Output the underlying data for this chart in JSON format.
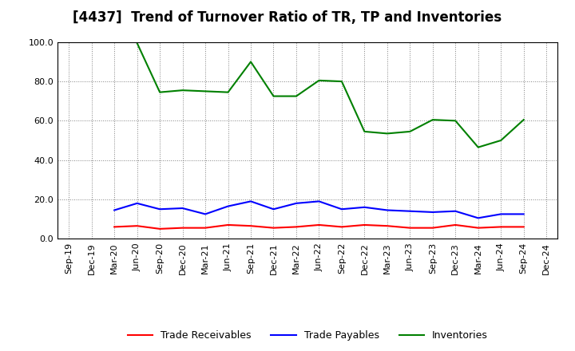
{
  "title": "[4437]  Trend of Turnover Ratio of TR, TP and Inventories",
  "xlabels": [
    "Sep-19",
    "Dec-19",
    "Mar-20",
    "Jun-20",
    "Sep-20",
    "Dec-20",
    "Mar-21",
    "Jun-21",
    "Sep-21",
    "Dec-21",
    "Mar-22",
    "Jun-22",
    "Sep-22",
    "Dec-22",
    "Mar-23",
    "Jun-23",
    "Sep-23",
    "Dec-23",
    "Mar-24",
    "Jun-24",
    "Sep-24",
    "Dec-24"
  ],
  "trade_receivables": [
    null,
    null,
    6.0,
    6.5,
    5.0,
    5.5,
    5.5,
    7.0,
    6.5,
    5.5,
    6.0,
    7.0,
    6.0,
    7.0,
    6.5,
    5.5,
    5.5,
    7.0,
    5.5,
    6.0,
    6.0,
    null
  ],
  "trade_payables": [
    null,
    null,
    14.5,
    18.0,
    15.0,
    15.5,
    12.5,
    16.5,
    19.0,
    15.0,
    18.0,
    19.0,
    15.0,
    16.0,
    14.5,
    14.0,
    13.5,
    14.0,
    10.5,
    12.5,
    12.5,
    null
  ],
  "inventories": [
    null,
    null,
    null,
    99.5,
    74.5,
    75.5,
    75.0,
    74.5,
    90.0,
    72.5,
    72.5,
    80.5,
    80.0,
    54.5,
    53.5,
    54.5,
    60.5,
    60.0,
    46.5,
    50.0,
    60.5,
    null
  ],
  "ylim": [
    0.0,
    100.0
  ],
  "yticks": [
    0.0,
    20.0,
    40.0,
    60.0,
    80.0,
    100.0
  ],
  "color_tr": "#ff0000",
  "color_tp": "#0000ff",
  "color_inv": "#008000",
  "legend_labels": [
    "Trade Receivables",
    "Trade Payables",
    "Inventories"
  ],
  "title_fontsize": 12,
  "label_fontsize": 9,
  "tick_fontsize": 8,
  "background_color": "#ffffff"
}
